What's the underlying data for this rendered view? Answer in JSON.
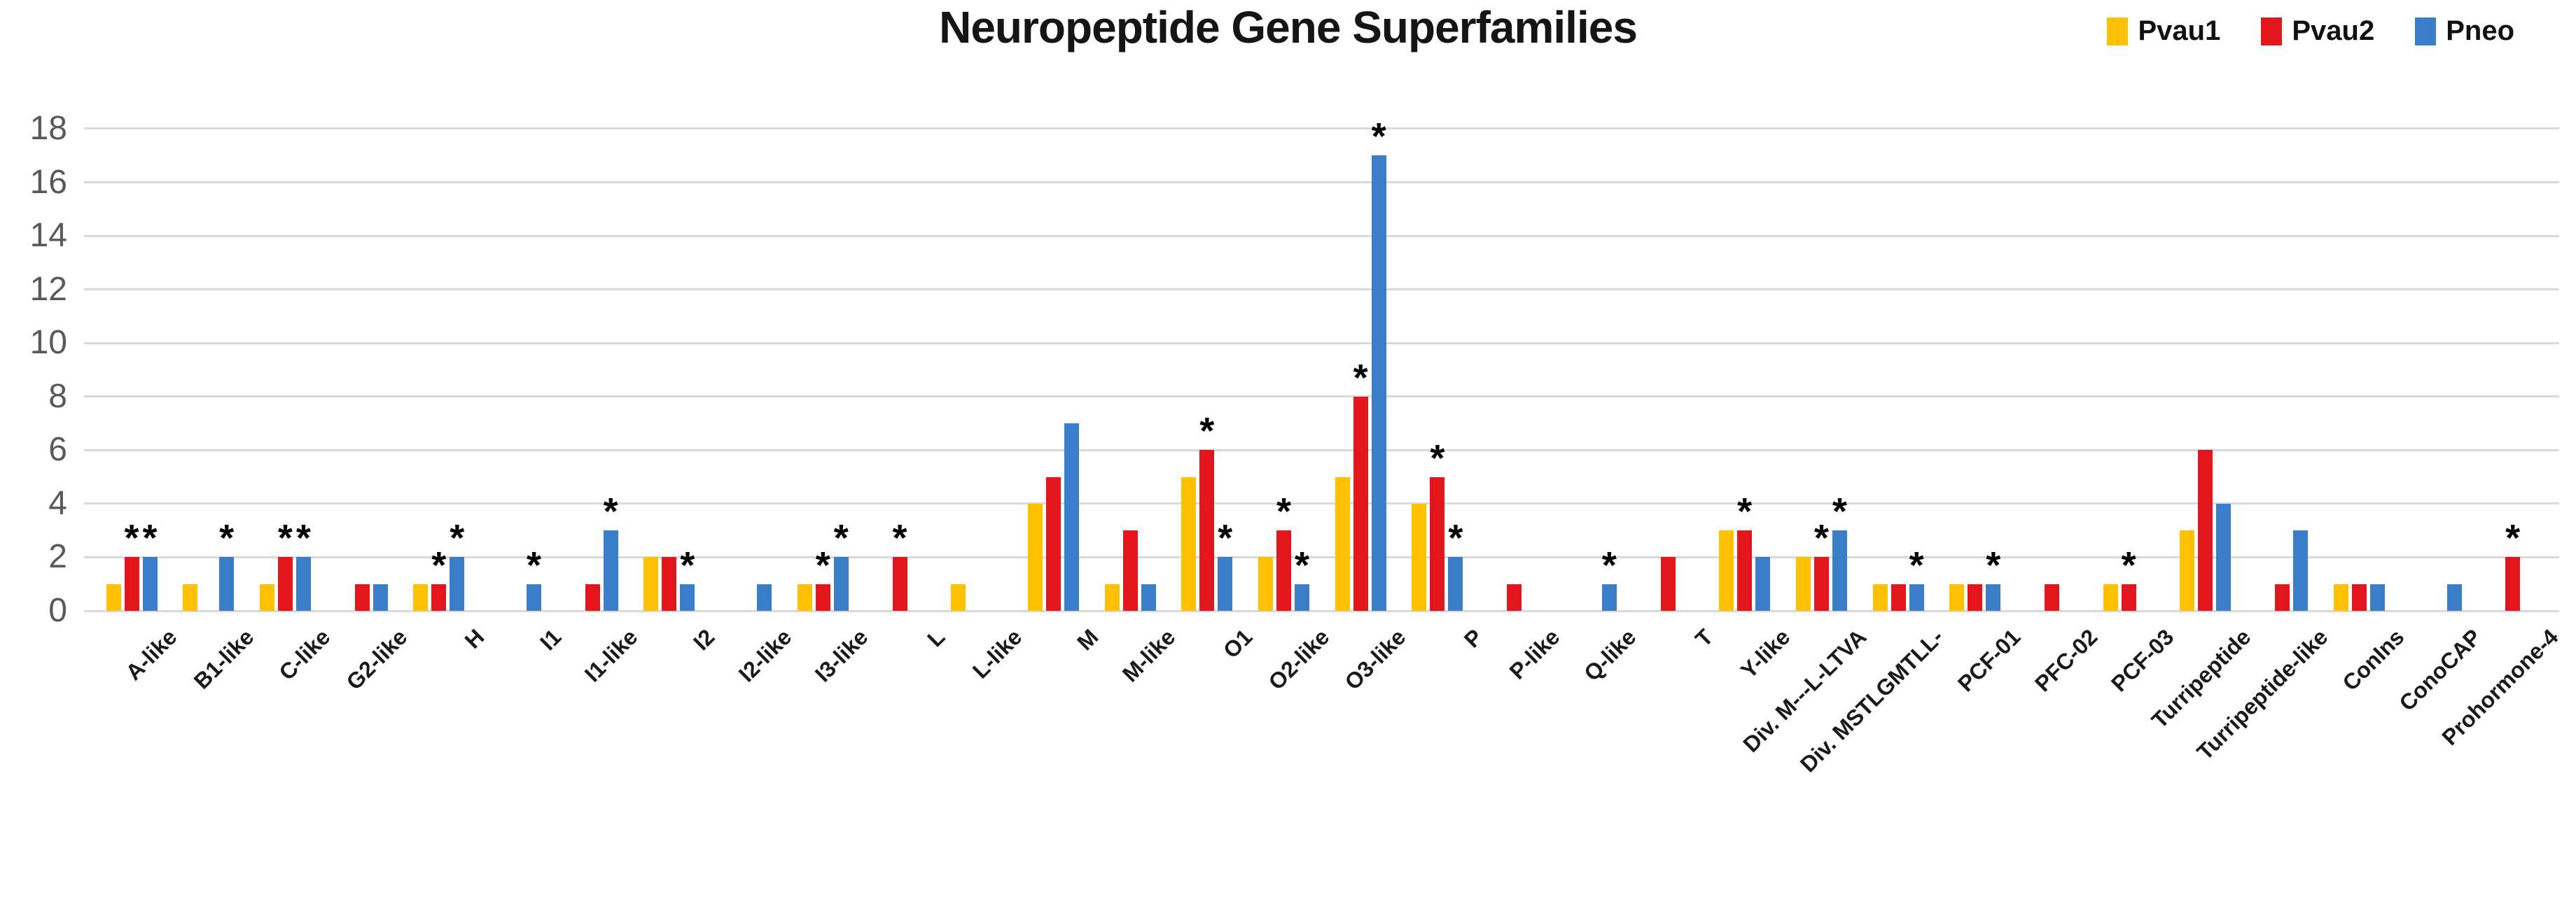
{
  "title": "Neuropeptide Gene Superfamilies",
  "legend": {
    "items": [
      {
        "label": "Pvau1",
        "color": "#FFC000"
      },
      {
        "label": "Pvau2",
        "color": "#E3161E"
      },
      {
        "label": "Pneo",
        "color": "#3A7DC9"
      }
    ]
  },
  "colors": {
    "gridline": "#D9D9D9",
    "y_tick_label": "#595959",
    "x_tick_label": "#1a1a1a",
    "asterisk": "#000000"
  },
  "chart_data": {
    "type": "bar",
    "title": "Neuropeptide Gene Superfamilies",
    "grid": true,
    "legend_position": "top-right",
    "ylim": [
      0,
      18
    ],
    "yticks": [
      0,
      2,
      4,
      6,
      8,
      10,
      12,
      14,
      16,
      18
    ],
    "categories": [
      "A-like",
      "B1-like",
      "C-like",
      "G2-like",
      "H",
      "I1",
      "I1-like",
      "I2",
      "I2-like",
      "I3-like",
      "L",
      "L-like",
      "M",
      "M-like",
      "O1",
      "O2-like",
      "O3-like",
      "P",
      "P-like",
      "Q-like",
      "T",
      "Y-like",
      "Div. M---L-LTVA",
      "Div. MSTLGMTLL-",
      "PCF-01",
      "PFC-02",
      "PCF-03",
      "Turripeptide",
      "Turripeptide-like",
      "ConIns",
      "ConoCAP",
      "Prohormone-4"
    ],
    "series": [
      {
        "name": "Pvau1",
        "color": "#FFC000",
        "values": [
          1,
          1,
          1,
          0,
          1,
          0,
          0,
          2,
          0,
          1,
          0,
          1,
          4,
          1,
          5,
          2,
          5,
          4,
          0,
          0,
          0,
          3,
          2,
          1,
          1,
          0,
          1,
          3,
          0,
          1,
          0,
          0
        ]
      },
      {
        "name": "Pvau2",
        "color": "#E3161E",
        "values": [
          2,
          0,
          2,
          1,
          1,
          0,
          1,
          2,
          0,
          1,
          2,
          0,
          5,
          3,
          6,
          3,
          8,
          5,
          1,
          0,
          2,
          3,
          2,
          1,
          1,
          1,
          1,
          6,
          1,
          1,
          0,
          2
        ]
      },
      {
        "name": "Pneo",
        "color": "#3A7DC9",
        "values": [
          2,
          2,
          2,
          1,
          2,
          1,
          3,
          1,
          1,
          2,
          0,
          0,
          7,
          1,
          2,
          1,
          17,
          2,
          0,
          1,
          0,
          2,
          3,
          1,
          1,
          0,
          0,
          4,
          3,
          1,
          1,
          0
        ]
      }
    ],
    "significance_asterisks": [
      {
        "category": "A-like",
        "series": "Pvau2"
      },
      {
        "category": "A-like",
        "series": "Pneo"
      },
      {
        "category": "B1-like",
        "series": "Pneo"
      },
      {
        "category": "C-like",
        "series": "Pvau2"
      },
      {
        "category": "C-like",
        "series": "Pneo"
      },
      {
        "category": "H",
        "series": "Pvau2"
      },
      {
        "category": "H",
        "series": "Pneo"
      },
      {
        "category": "I1",
        "series": "Pneo"
      },
      {
        "category": "I1-like",
        "series": "Pneo"
      },
      {
        "category": "I2",
        "series": "Pneo"
      },
      {
        "category": "I3-like",
        "series": "Pvau2"
      },
      {
        "category": "I3-like",
        "series": "Pneo"
      },
      {
        "category": "L",
        "series": "Pvau2"
      },
      {
        "category": "O1",
        "series": "Pvau2"
      },
      {
        "category": "O1",
        "series": "Pneo"
      },
      {
        "category": "O2-like",
        "series": "Pvau2"
      },
      {
        "category": "O2-like",
        "series": "Pneo"
      },
      {
        "category": "O3-like",
        "series": "Pvau2"
      },
      {
        "category": "O3-like",
        "series": "Pneo"
      },
      {
        "category": "P",
        "series": "Pvau2"
      },
      {
        "category": "P",
        "series": "Pneo"
      },
      {
        "category": "Q-like",
        "series": "Pneo"
      },
      {
        "category": "Y-like",
        "series": "Pvau2"
      },
      {
        "category": "Div. M---L-LTVA",
        "series": "Pvau2"
      },
      {
        "category": "Div. M---L-LTVA",
        "series": "Pneo"
      },
      {
        "category": "Div. MSTLGMTLL-",
        "series": "Pneo"
      },
      {
        "category": "PCF-01",
        "series": "Pneo"
      },
      {
        "category": "PCF-03",
        "series": "Pvau2"
      },
      {
        "category": "Prohormone-4",
        "series": "Pvau2"
      }
    ]
  }
}
